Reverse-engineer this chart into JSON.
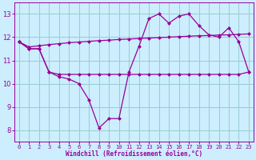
{
  "x": [
    0,
    1,
    2,
    3,
    4,
    5,
    6,
    7,
    8,
    9,
    10,
    11,
    12,
    13,
    14,
    15,
    16,
    17,
    18,
    19,
    20,
    21,
    22,
    23
  ],
  "line1_y": [
    11.8,
    11.5,
    11.5,
    10.5,
    10.3,
    10.2,
    10.0,
    9.3,
    8.1,
    8.5,
    8.5,
    10.5,
    11.6,
    12.8,
    13.0,
    12.6,
    12.9,
    13.0,
    12.5,
    12.1,
    12.0,
    12.4,
    11.8,
    10.5
  ],
  "line2_y": [
    11.8,
    11.5,
    11.5,
    10.5,
    10.4,
    10.4,
    10.4,
    10.4,
    10.4,
    10.4,
    10.4,
    10.4,
    10.4,
    10.4,
    10.4,
    10.4,
    10.4,
    10.4,
    10.4,
    10.4,
    10.4,
    10.4,
    10.4,
    10.5
  ],
  "line3_y": [
    11.8,
    11.58,
    11.63,
    11.68,
    11.72,
    11.76,
    11.79,
    11.82,
    11.85,
    11.87,
    11.9,
    11.92,
    11.94,
    11.96,
    11.98,
    12.0,
    12.02,
    12.04,
    12.06,
    12.07,
    12.09,
    12.1,
    12.12,
    12.14
  ],
  "bg_color": "#cceeff",
  "line_color": "#990099",
  "grid_color": "#99cccc",
  "xlabel": "Windchill (Refroidissement éolien,°C)",
  "xlim": [
    -0.5,
    23.5
  ],
  "ylim": [
    7.5,
    13.5
  ],
  "yticks": [
    8,
    9,
    10,
    11,
    12,
    13
  ],
  "xticks": [
    0,
    1,
    2,
    3,
    4,
    5,
    6,
    7,
    8,
    9,
    10,
    11,
    12,
    13,
    14,
    15,
    16,
    17,
    18,
    19,
    20,
    21,
    22,
    23
  ],
  "marker": "D",
  "markersize": 2.5,
  "linewidth": 0.9,
  "xlabel_fontsize": 5.5,
  "tick_fontsize": 5,
  "ytick_fontsize": 6
}
